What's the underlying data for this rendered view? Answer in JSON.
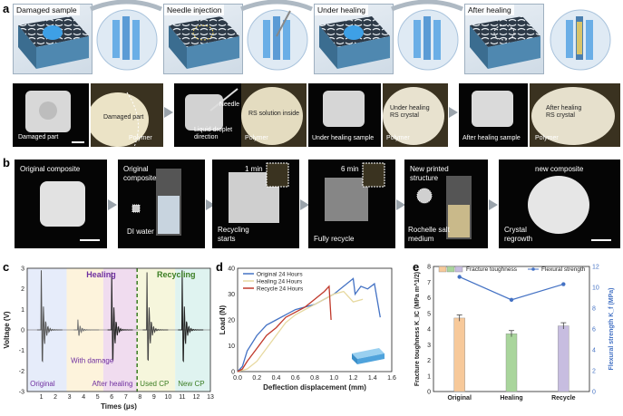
{
  "panel_a": {
    "letter": "a",
    "renders": [
      {
        "label": "Damaged sample"
      },
      {
        "label": "Needle injection"
      },
      {
        "label": "Under healing"
      },
      {
        "label": "After healing"
      }
    ],
    "photos": [
      {
        "captions": [
          "Damaged part"
        ]
      },
      {
        "captions": [
          "Damaged part",
          "Polymer"
        ]
      },
      {
        "captions": [
          "Needle",
          "Liquid droplet",
          "direction"
        ]
      },
      {
        "captions": [
          "RS solution inside",
          "Polymer"
        ]
      },
      {
        "captions": [
          "Under healing sample"
        ]
      },
      {
        "captions": [
          "Under healing",
          "RS crystal",
          "Polymer"
        ]
      },
      {
        "captions": [
          "After healing sample"
        ]
      },
      {
        "captions": [
          "After healing",
          "RS crystal",
          "Polymer"
        ]
      }
    ]
  },
  "panel_b": {
    "letter": "b",
    "photos": [
      {
        "captions": [
          "Original composite"
        ]
      },
      {
        "captions": [
          "Original",
          "composite",
          "DI water"
        ]
      },
      {
        "captions": [
          "1 min",
          "Recycling",
          "starts"
        ]
      },
      {
        "captions": [
          "6 min",
          "Fully recycle"
        ]
      },
      {
        "captions": [
          "New printed",
          "structure",
          "Rochelle salt",
          "medium"
        ]
      },
      {
        "captions": [
          "new composite",
          "Crystal",
          "regrowth"
        ]
      }
    ]
  },
  "panel_c": {
    "letter": "c",
    "chart_data": {
      "type": "line",
      "xlabel": "Times (μs)",
      "ylabel": "Voltage (V)",
      "xlim": [
        0,
        13
      ],
      "ylim": [
        -3,
        3
      ],
      "xticks": [
        1,
        2,
        3,
        4,
        5,
        6,
        7,
        8,
        9,
        10,
        11,
        12,
        13
      ],
      "yticks": [
        -3,
        -2,
        -1,
        0,
        1,
        2,
        3
      ],
      "regions": [
        {
          "label": "Original",
          "from": 0,
          "to": 2.8,
          "color": "#e6ecfa"
        },
        {
          "label": "With damage",
          "from": 2.8,
          "to": 5.4,
          "color": "#fdf3dc"
        },
        {
          "label": "After healing",
          "from": 5.4,
          "to": 7.8,
          "color": "#f0dcef"
        },
        {
          "label": "Used CP",
          "from": 7.8,
          "to": 10.5,
          "color": "#f6f6dc"
        },
        {
          "label": "New CP",
          "from": 10.5,
          "to": 13,
          "color": "#dff3f0"
        }
      ],
      "group_labels": [
        {
          "text": "Healing",
          "color": "#7030a0"
        },
        {
          "text": "Recycling",
          "color": "#3a7d22"
        }
      ],
      "pulses": [
        {
          "t": 1.0,
          "amp": 2.9,
          "color": "#555555"
        },
        {
          "t": 3.6,
          "amp": 0.5,
          "color": "#777777"
        },
        {
          "t": 6.0,
          "amp": 2.8,
          "color": "#222222"
        },
        {
          "t": 8.5,
          "amp": 2.8,
          "color": "#444444"
        },
        {
          "t": 11.0,
          "amp": 2.9,
          "color": "#222222"
        }
      ]
    }
  },
  "panel_d": {
    "letter": "d",
    "chart_data": {
      "type": "line",
      "xlabel": "Deflection displacement (mm)",
      "ylabel": "Load (N)",
      "xlim": [
        0,
        1.6
      ],
      "ylim": [
        0,
        40
      ],
      "xticks": [
        0.0,
        0.2,
        0.4,
        0.6,
        0.8,
        1.0,
        1.2,
        1.4,
        1.6
      ],
      "yticks": [
        0,
        10,
        20,
        30,
        40
      ],
      "legend_placement": "top-left",
      "series": [
        {
          "name": "Original 24 Hours",
          "color": "#4472c4",
          "x": [
            0.0,
            0.05,
            0.1,
            0.2,
            0.3,
            0.4,
            0.5,
            0.6,
            0.7,
            0.8,
            0.9,
            1.0,
            1.1,
            1.2,
            1.22,
            1.28,
            1.35,
            1.42,
            1.48
          ],
          "y": [
            0,
            2,
            8,
            14,
            18,
            20,
            22,
            24,
            25,
            26,
            28,
            30,
            33,
            36,
            30,
            33,
            32,
            34,
            21
          ]
        },
        {
          "name": "Healing 24 Hours",
          "color": "#e7d9a0",
          "x": [
            0.0,
            0.1,
            0.2,
            0.3,
            0.4,
            0.5,
            0.6,
            0.7,
            0.8,
            0.9,
            1.0,
            1.1,
            1.2,
            1.3
          ],
          "y": [
            0,
            1,
            4,
            9,
            14,
            19,
            22,
            24,
            26,
            28,
            30,
            31,
            27,
            28
          ]
        },
        {
          "name": "Recycle 24 Hours",
          "color": "#c0392b",
          "x": [
            0.0,
            0.05,
            0.1,
            0.2,
            0.3,
            0.4,
            0.5,
            0.6,
            0.7,
            0.8,
            0.9,
            0.95,
            0.97
          ],
          "y": [
            0,
            1,
            4,
            9,
            14,
            17,
            21,
            23,
            25,
            28,
            31,
            33,
            20
          ]
        }
      ]
    }
  },
  "panel_e": {
    "letter": "e",
    "chart_data": {
      "type": "bar",
      "categories": [
        "Original",
        "Healing",
        "Recycle"
      ],
      "ylabel_left": "Fracture toughness K_IC (MPa m^1/2)",
      "ylabel_right": "Flexural strength K_f (MPa)",
      "ylim_left": [
        0,
        8
      ],
      "ylim_right": [
        0,
        12
      ],
      "yticks_left": [
        0,
        1,
        2,
        3,
        4,
        5,
        6,
        7,
        8
      ],
      "yticks_right": [
        0,
        2,
        4,
        6,
        8,
        10,
        12
      ],
      "legend": [
        "Fracture toughness",
        "Flexural strength"
      ],
      "bars": [
        {
          "category": "Original",
          "value": 4.7,
          "err": 0.2,
          "color": "#f7c99a"
        },
        {
          "category": "Healing",
          "value": 3.7,
          "err": 0.2,
          "color": "#a9d59c"
        },
        {
          "category": "Recycle",
          "value": 4.2,
          "err": 0.2,
          "color": "#c7bde0"
        }
      ],
      "line_values": [
        11.0,
        8.8,
        10.3
      ]
    }
  },
  "colors": {
    "arrow": "#9aa3ab",
    "structure_blue": "#5b9bd5"
  }
}
